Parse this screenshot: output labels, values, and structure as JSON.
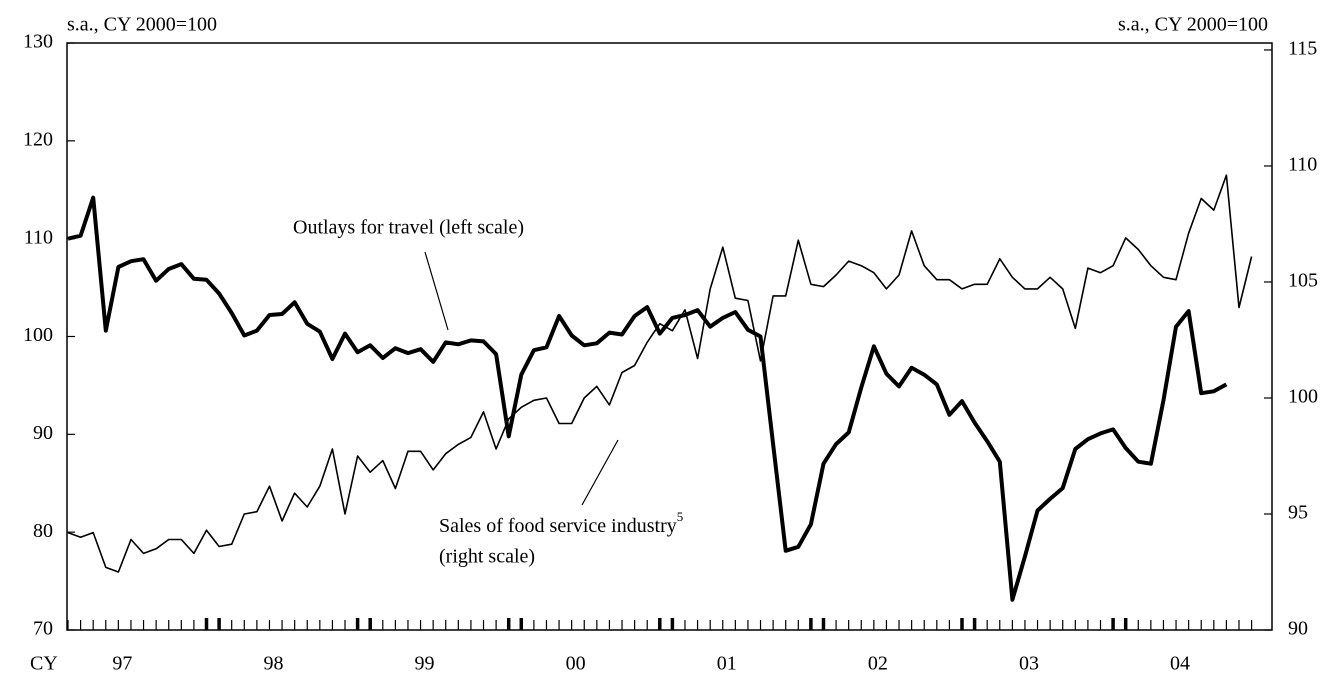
{
  "chart_data": {
    "type": "line",
    "y_axis_label": "s.a., CY 2000=100",
    "y2_axis_label": "s.a., CY 2000=100",
    "x_label": "CY",
    "annotations": [
      {
        "text": "Outlays for travel (left scale)"
      },
      {
        "text": "Sales of food service industry",
        "sup": "5"
      },
      {
        "text": "(right scale)"
      }
    ],
    "categories": [
      null,
      null,
      null,
      null,
      "97",
      null,
      null,
      null,
      null,
      null,
      null,
      null,
      null,
      null,
      null,
      null,
      "98",
      null,
      null,
      null,
      null,
      null,
      null,
      null,
      null,
      null,
      null,
      null,
      "99",
      null,
      null,
      null,
      null,
      null,
      null,
      null,
      null,
      null,
      null,
      null,
      "00",
      null,
      null,
      null,
      null,
      null,
      null,
      null,
      null,
      null,
      null,
      null,
      "01",
      null,
      null,
      null,
      null,
      null,
      null,
      null,
      null,
      null,
      null,
      null,
      "02",
      null,
      null,
      null,
      null,
      null,
      null,
      null,
      null,
      null,
      null,
      null,
      "03",
      null,
      null,
      null,
      null,
      null,
      null,
      null,
      null,
      null,
      null,
      null,
      "04",
      null,
      null,
      null,
      null,
      null,
      null
    ],
    "ylim": [
      70,
      130
    ],
    "yticks": [
      70,
      80,
      90,
      100,
      110,
      120,
      130
    ],
    "y2lim": [
      90,
      115.3
    ],
    "y2ticks": [
      90,
      95,
      100,
      105,
      110,
      115
    ],
    "series": [
      {
        "name": "Outlays for travel",
        "color": "#000000",
        "width": 4,
        "values": [
          110,
          110.3,
          114.2,
          100.6,
          107.1,
          107.7,
          107.9,
          105.7,
          106.9,
          107.4,
          105.9,
          105.8,
          104.4,
          102.4,
          100.1,
          100.6,
          102.2,
          102.3,
          103.5,
          101.3,
          100.5,
          97.7,
          100.3,
          98.4,
          99.1,
          97.8,
          98.8,
          98.3,
          98.7,
          97.4,
          99.4,
          99.2,
          99.6,
          99.5,
          98.2,
          89.8,
          96.1,
          98.6,
          98.9,
          102.1,
          100.1,
          99.1,
          99.3,
          100.4,
          100.2,
          102.1,
          103,
          100.3,
          101.9,
          102.2,
          102.7,
          101,
          101.9,
          102.5,
          100.7,
          100,
          89,
          78.1,
          78.5,
          80.8,
          87,
          89,
          90.2,
          94.8,
          99,
          96.2,
          94.9,
          96.8,
          96.1,
          95.1,
          92,
          93.4,
          91.2,
          89.3,
          87.2,
          73.1,
          77.5,
          82.2,
          83.4,
          84.5,
          88.5,
          89.5,
          90.1,
          90.5,
          88.6,
          87.2,
          87,
          93.5,
          101,
          102.6,
          94.2,
          94.4,
          95.1,
          null,
          null
        ]
      },
      {
        "name": "Sales of food service industry",
        "color": "#000000",
        "width": 1.6,
        "axis": "y2",
        "values": [
          94.2,
          94.0,
          94.2,
          92.7,
          92.5,
          93.9,
          93.3,
          93.5,
          93.9,
          93.9,
          93.3,
          94.3,
          93.6,
          93.7,
          95.0,
          95.1,
          96.2,
          94.7,
          95.9,
          95.3,
          96.2,
          97.8,
          95.0,
          97.5,
          96.8,
          97.3,
          96.1,
          97.7,
          97.7,
          96.9,
          97.6,
          98.0,
          98.3,
          99.4,
          97.8,
          99.1,
          99.6,
          99.9,
          100.0,
          98.9,
          98.9,
          100.0,
          100.5,
          99.7,
          101.1,
          101.4,
          102.4,
          103.2,
          102.9,
          103.8,
          101.7,
          104.7,
          106.5,
          104.3,
          104.2,
          101.6,
          104.4,
          104.4,
          106.8,
          104.9,
          104.8,
          105.3,
          105.9,
          105.7,
          105.4,
          104.7,
          105.3,
          107.2,
          105.7,
          105.1,
          105.1,
          104.7,
          104.9,
          104.9,
          106.0,
          105.2,
          104.7,
          104.7,
          105.2,
          104.7,
          103.0,
          105.6,
          105.4,
          105.7,
          106.9,
          106.4,
          105.7,
          105.2,
          105.1,
          107.1,
          108.6,
          108.1,
          109.6,
          103.9,
          106.1
        ]
      }
    ]
  }
}
